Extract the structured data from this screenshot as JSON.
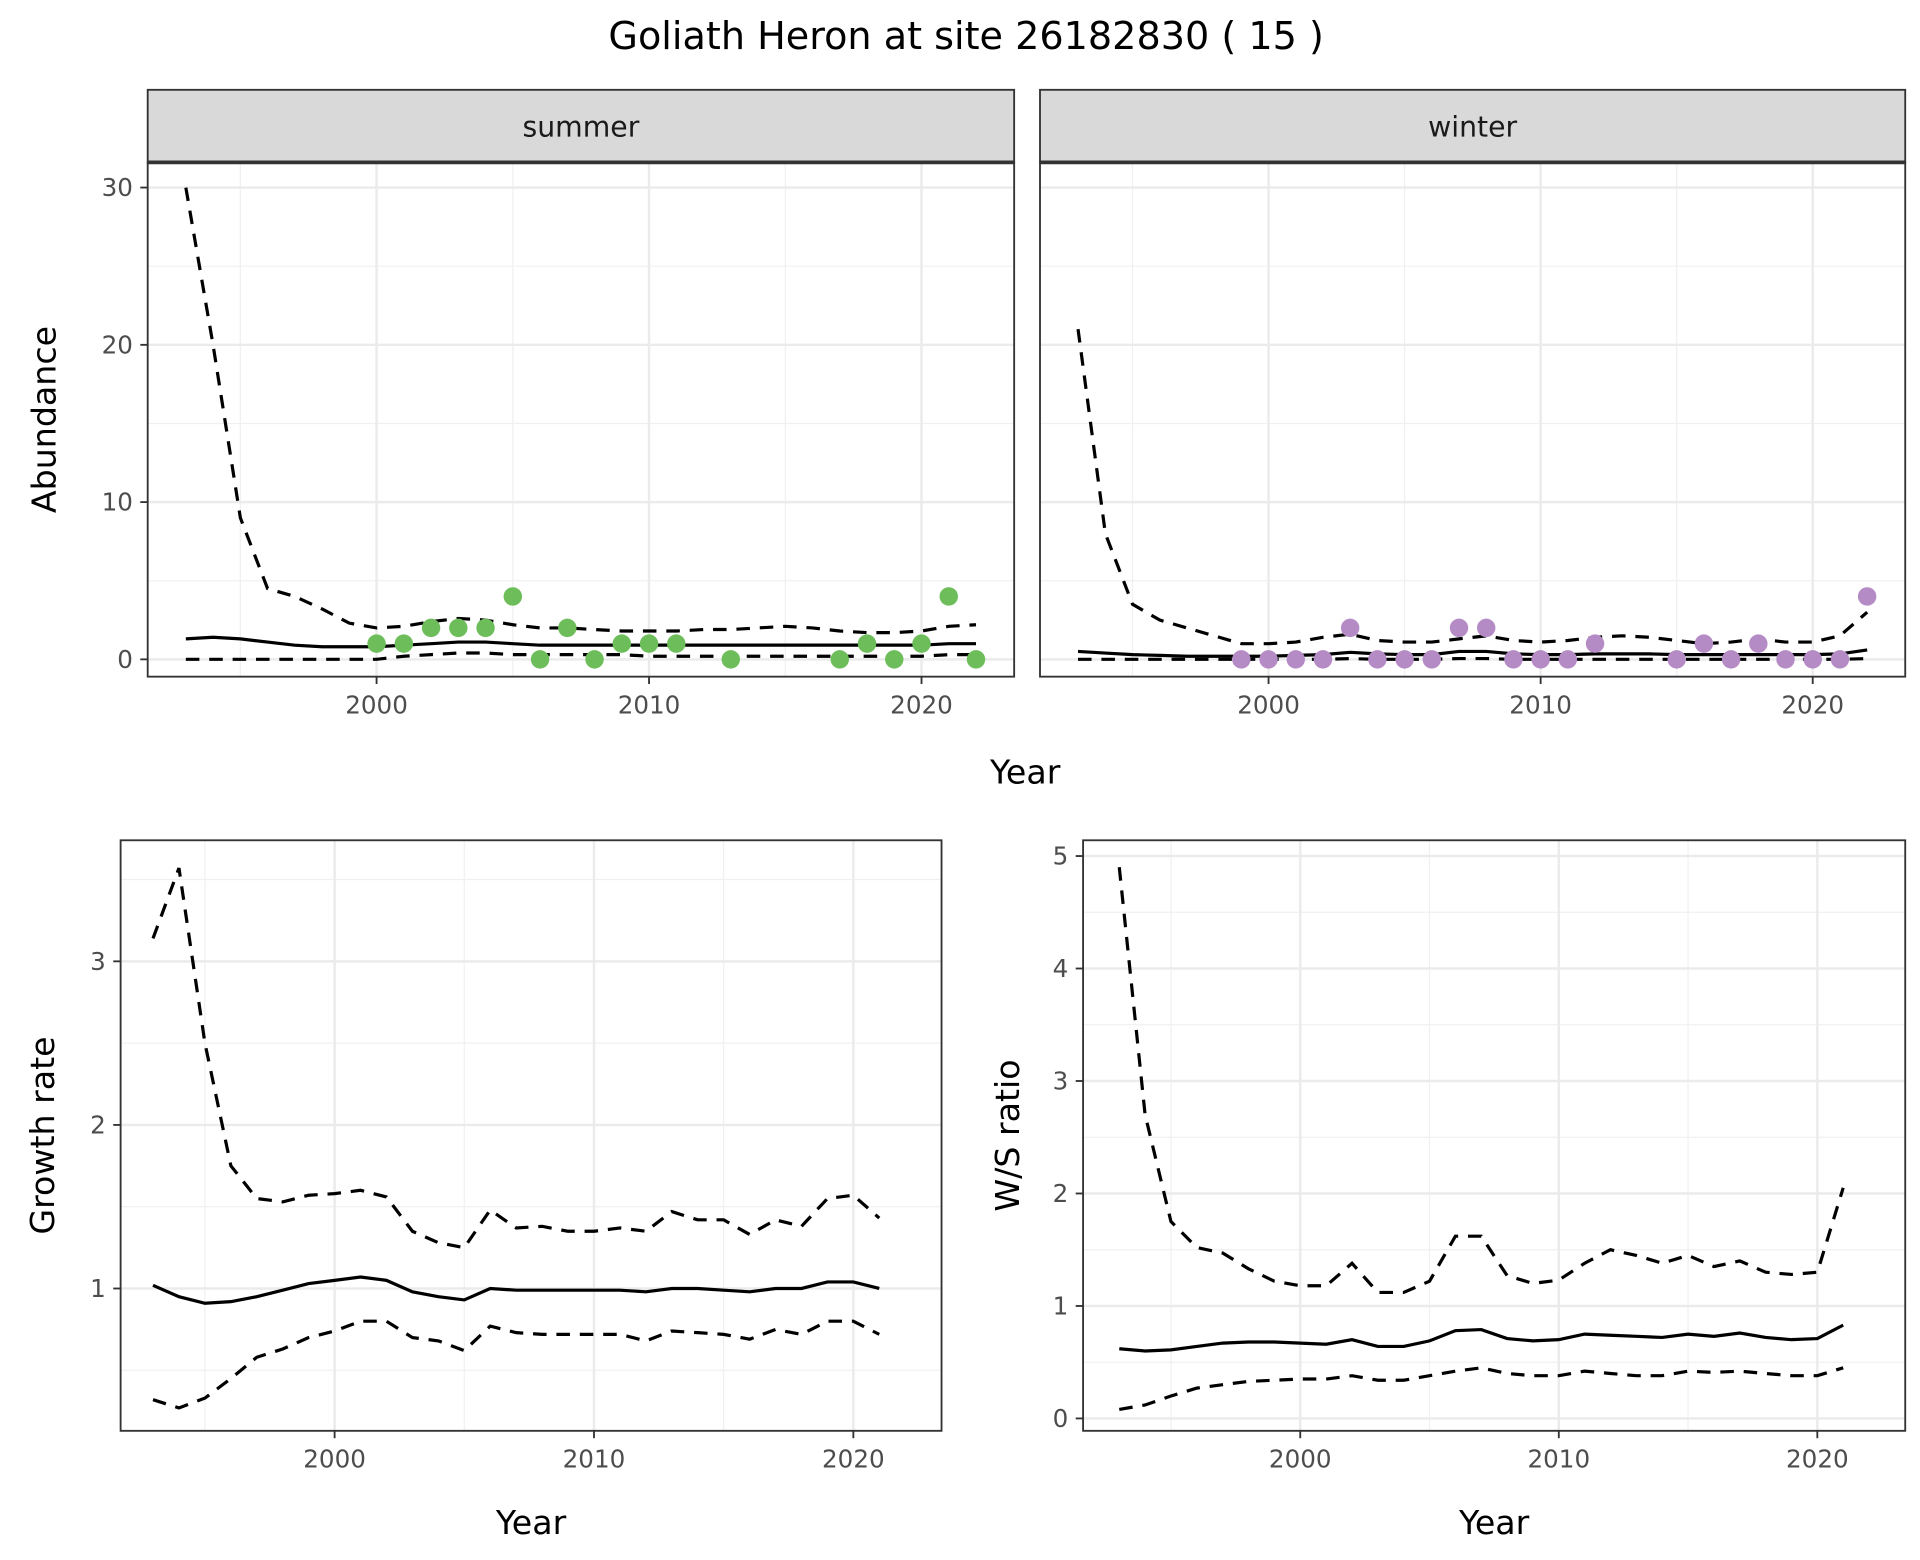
{
  "title": "Goliath Heron at site 26182830 ( 15 )",
  "colors": {
    "summer": "#6dbe5a",
    "winter": "#b58bc6",
    "line": "#000000",
    "strip": "#d9d9d9"
  },
  "chart_data": [
    {
      "type": "scatter+line",
      "facet": "summer",
      "xlabel": "Year",
      "ylabel": "Abundance",
      "xlim": [
        1991.6,
        2023.4
      ],
      "ylim": [
        -1.1,
        31.6
      ],
      "xticks": [
        2000,
        2010,
        2020
      ],
      "yticks": [
        0,
        10,
        20,
        30
      ],
      "grid": true,
      "points": {
        "x": [
          2000,
          2001,
          2002,
          2003,
          2004,
          2005,
          2006,
          2007,
          2008,
          2009,
          2010,
          2011,
          2013,
          2017,
          2018,
          2019,
          2020,
          2021,
          2022
        ],
        "y": [
          1,
          1,
          2,
          2,
          2,
          4,
          0,
          2,
          0,
          1,
          1,
          1,
          0,
          0,
          1,
          0,
          1,
          4,
          0
        ]
      },
      "lines": {
        "x": [
          1993,
          1994,
          1995,
          1996,
          1997,
          1998,
          1999,
          2000,
          2001,
          2002,
          2003,
          2004,
          2005,
          2006,
          2007,
          2008,
          2009,
          2010,
          2011,
          2012,
          2013,
          2014,
          2015,
          2016,
          2017,
          2018,
          2019,
          2020,
          2021,
          2022
        ],
        "mean": [
          1.3,
          1.4,
          1.3,
          1.1,
          0.9,
          0.8,
          0.8,
          0.8,
          0.9,
          1.0,
          1.1,
          1.1,
          1.0,
          0.9,
          0.9,
          0.9,
          0.9,
          0.9,
          0.9,
          0.9,
          0.9,
          0.9,
          0.9,
          0.9,
          0.9,
          0.9,
          0.9,
          0.9,
          1.0,
          1.0
        ],
        "upper": [
          30,
          20,
          9,
          4.5,
          4,
          3.2,
          2.3,
          2.0,
          2.1,
          2.4,
          2.6,
          2.5,
          2.2,
          2.0,
          2.0,
          1.9,
          1.8,
          1.8,
          1.8,
          1.9,
          1.9,
          2.0,
          2.1,
          2.0,
          1.8,
          1.7,
          1.7,
          1.8,
          2.1,
          2.2
        ],
        "lower": [
          0,
          0,
          0,
          0,
          0,
          0,
          0,
          0,
          0.2,
          0.3,
          0.4,
          0.4,
          0.3,
          0.3,
          0.3,
          0.3,
          0.3,
          0.2,
          0.2,
          0.2,
          0.2,
          0.2,
          0.2,
          0.2,
          0.2,
          0.2,
          0.2,
          0.2,
          0.3,
          0.3
        ]
      }
    },
    {
      "type": "scatter+line",
      "facet": "winter",
      "xlabel": "Year",
      "ylabel": "Abundance",
      "xlim": [
        1991.6,
        2023.4
      ],
      "ylim": [
        -1.1,
        31.6
      ],
      "xticks": [
        2000,
        2010,
        2020
      ],
      "yticks": [
        0,
        10,
        20,
        30
      ],
      "grid": true,
      "points": {
        "x": [
          1999,
          2000,
          2001,
          2002,
          2003,
          2004,
          2005,
          2006,
          2007,
          2008,
          2009,
          2010,
          2011,
          2012,
          2015,
          2016,
          2017,
          2018,
          2019,
          2020,
          2021,
          2022
        ],
        "y": [
          0,
          0,
          0,
          0,
          2,
          0,
          0,
          0,
          2,
          2,
          0,
          0,
          0,
          1,
          0,
          1,
          0,
          1,
          0,
          0,
          0,
          4
        ]
      },
      "lines": {
        "x": [
          1993,
          1994,
          1995,
          1996,
          1997,
          1998,
          1999,
          2000,
          2001,
          2002,
          2003,
          2004,
          2005,
          2006,
          2007,
          2008,
          2009,
          2010,
          2011,
          2012,
          2013,
          2014,
          2015,
          2016,
          2017,
          2018,
          2019,
          2020,
          2021,
          2022
        ],
        "mean": [
          0.5,
          0.4,
          0.3,
          0.25,
          0.2,
          0.2,
          0.2,
          0.2,
          0.25,
          0.3,
          0.45,
          0.35,
          0.3,
          0.3,
          0.5,
          0.5,
          0.35,
          0.3,
          0.3,
          0.35,
          0.35,
          0.35,
          0.3,
          0.3,
          0.3,
          0.3,
          0.3,
          0.3,
          0.35,
          0.6
        ],
        "upper": [
          21,
          8,
          3.5,
          2.5,
          2.0,
          1.5,
          1.0,
          1.0,
          1.1,
          1.4,
          1.6,
          1.2,
          1.1,
          1.1,
          1.3,
          1.5,
          1.2,
          1.1,
          1.2,
          1.4,
          1.5,
          1.4,
          1.2,
          1.0,
          1.1,
          1.3,
          1.1,
          1.1,
          1.5,
          3.0
        ],
        "lower": [
          0,
          0,
          0,
          0,
          0,
          0,
          0,
          0,
          0,
          0,
          0.05,
          0,
          0,
          0,
          0.05,
          0.05,
          0,
          0,
          0,
          0,
          0,
          0,
          0,
          0,
          0,
          0,
          0,
          0,
          0,
          0.05
        ]
      }
    },
    {
      "type": "line",
      "xlabel": "Year",
      "ylabel": "Growth rate",
      "xlim": [
        1991.75,
        2023.4
      ],
      "ylim": [
        0.13,
        3.74
      ],
      "xticks": [
        2000,
        2010,
        2020
      ],
      "yticks": [
        1,
        2,
        3
      ],
      "grid": true,
      "lines": {
        "x": [
          1993,
          1994,
          1995,
          1996,
          1997,
          1998,
          1999,
          2000,
          2001,
          2002,
          2003,
          2004,
          2005,
          2006,
          2007,
          2008,
          2009,
          2010,
          2011,
          2012,
          2013,
          2014,
          2015,
          2016,
          2017,
          2018,
          2019,
          2020,
          2021
        ],
        "mean": [
          1.02,
          0.95,
          0.91,
          0.92,
          0.95,
          0.99,
          1.03,
          1.05,
          1.07,
          1.05,
          0.98,
          0.95,
          0.93,
          1.0,
          0.99,
          0.99,
          0.99,
          0.99,
          0.99,
          0.98,
          1.0,
          1.0,
          0.99,
          0.98,
          1.0,
          1.0,
          1.04,
          1.04,
          1.0
        ],
        "upper": [
          3.14,
          3.57,
          2.5,
          1.75,
          1.55,
          1.53,
          1.57,
          1.58,
          1.6,
          1.56,
          1.35,
          1.28,
          1.25,
          1.48,
          1.37,
          1.38,
          1.35,
          1.35,
          1.37,
          1.35,
          1.47,
          1.42,
          1.42,
          1.33,
          1.42,
          1.38,
          1.55,
          1.57,
          1.43
        ],
        "lower": [
          0.32,
          0.27,
          0.33,
          0.45,
          0.58,
          0.63,
          0.7,
          0.74,
          0.8,
          0.8,
          0.7,
          0.68,
          0.62,
          0.77,
          0.73,
          0.72,
          0.72,
          0.72,
          0.72,
          0.68,
          0.74,
          0.73,
          0.72,
          0.69,
          0.75,
          0.72,
          0.8,
          0.8,
          0.72
        ]
      }
    },
    {
      "type": "line",
      "xlabel": "Year",
      "ylabel": "W/S ratio",
      "xlim": [
        1991.6,
        2023.4
      ],
      "ylim": [
        -0.11,
        5.14
      ],
      "xticks": [
        2000,
        2010,
        2020
      ],
      "yticks": [
        0,
        1,
        2,
        3,
        4,
        5
      ],
      "grid": true,
      "lines": {
        "x": [
          1993,
          1994,
          1995,
          1996,
          1997,
          1998,
          1999,
          2000,
          2001,
          2002,
          2003,
          2004,
          2005,
          2006,
          2007,
          2008,
          2009,
          2010,
          2011,
          2012,
          2013,
          2014,
          2015,
          2016,
          2017,
          2018,
          2019,
          2020,
          2021
        ],
        "mean": [
          0.62,
          0.6,
          0.61,
          0.64,
          0.67,
          0.68,
          0.68,
          0.67,
          0.66,
          0.7,
          0.64,
          0.64,
          0.69,
          0.78,
          0.79,
          0.71,
          0.69,
          0.7,
          0.75,
          0.74,
          0.73,
          0.72,
          0.75,
          0.73,
          0.76,
          0.72,
          0.7,
          0.71,
          0.83
        ],
        "upper": [
          4.9,
          2.7,
          1.75,
          1.52,
          1.47,
          1.33,
          1.22,
          1.18,
          1.18,
          1.38,
          1.12,
          1.12,
          1.22,
          1.62,
          1.62,
          1.27,
          1.2,
          1.23,
          1.38,
          1.5,
          1.45,
          1.38,
          1.45,
          1.35,
          1.4,
          1.3,
          1.28,
          1.3,
          2.05
        ],
        "lower": [
          0.08,
          0.12,
          0.2,
          0.27,
          0.3,
          0.33,
          0.34,
          0.35,
          0.35,
          0.38,
          0.34,
          0.34,
          0.38,
          0.42,
          0.45,
          0.4,
          0.38,
          0.38,
          0.42,
          0.4,
          0.38,
          0.38,
          0.42,
          0.41,
          0.42,
          0.4,
          0.38,
          0.38,
          0.45
        ]
      }
    }
  ]
}
